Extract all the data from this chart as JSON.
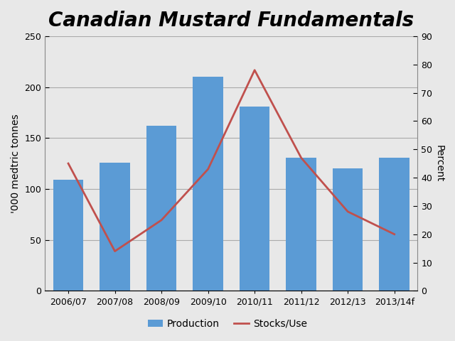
{
  "title": "Canadian Mustard Fundamentals",
  "categories": [
    "2006/07",
    "2007/08",
    "2008/09",
    "2009/10",
    "2010/11",
    "2011/12",
    "2012/13",
    "2013/14f"
  ],
  "production": [
    109,
    126,
    162,
    210,
    181,
    131,
    120,
    131
  ],
  "stocks_use": [
    45,
    14,
    25,
    43,
    78,
    47,
    28,
    20
  ],
  "bar_color": "#5B9BD5",
  "line_color": "#C0504D",
  "ylabel_left": "'000 medtric tonnes",
  "ylabel_right": "Percent",
  "ylim_left": [
    0,
    250
  ],
  "ylim_right": [
    0,
    90
  ],
  "yticks_left": [
    0,
    50,
    100,
    150,
    200,
    250
  ],
  "yticks_right": [
    0,
    10,
    20,
    30,
    40,
    50,
    60,
    70,
    80,
    90
  ],
  "legend_labels": [
    "Production",
    "Stocks/Use"
  ],
  "title_fontsize": 20,
  "axis_label_fontsize": 10,
  "tick_fontsize": 9,
  "legend_fontsize": 10,
  "background_color": "#E8E8E8",
  "plot_background_color": "#E8E8E8",
  "grid_color": "#AAAAAA"
}
